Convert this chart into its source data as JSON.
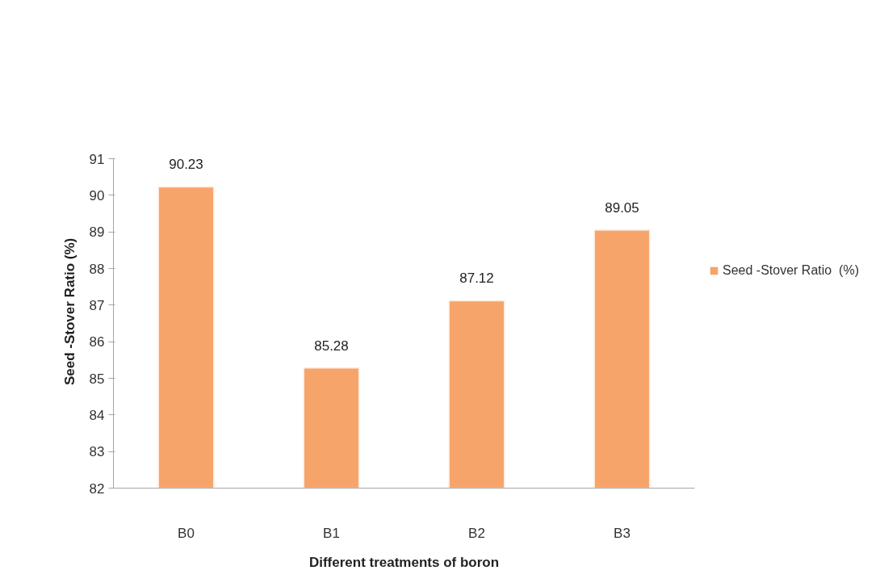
{
  "chart_data": {
    "type": "bar",
    "xlabel": "Different treatments of boron",
    "ylabel": "Seed -Stover Ratio  (%)",
    "categories": [
      "B0",
      "B1",
      "B2",
      "B3"
    ],
    "series": [
      {
        "name": "Seed -Stover Ratio  (%)",
        "color": "#f6a46a",
        "values": [
          90.23,
          85.28,
          87.12,
          89.05
        ]
      }
    ],
    "ylim": [
      82,
      91
    ],
    "yticks": [
      82,
      83,
      84,
      85,
      86,
      87,
      88,
      89,
      90,
      91
    ],
    "data_labels": true,
    "grid": false,
    "legend": "right"
  }
}
